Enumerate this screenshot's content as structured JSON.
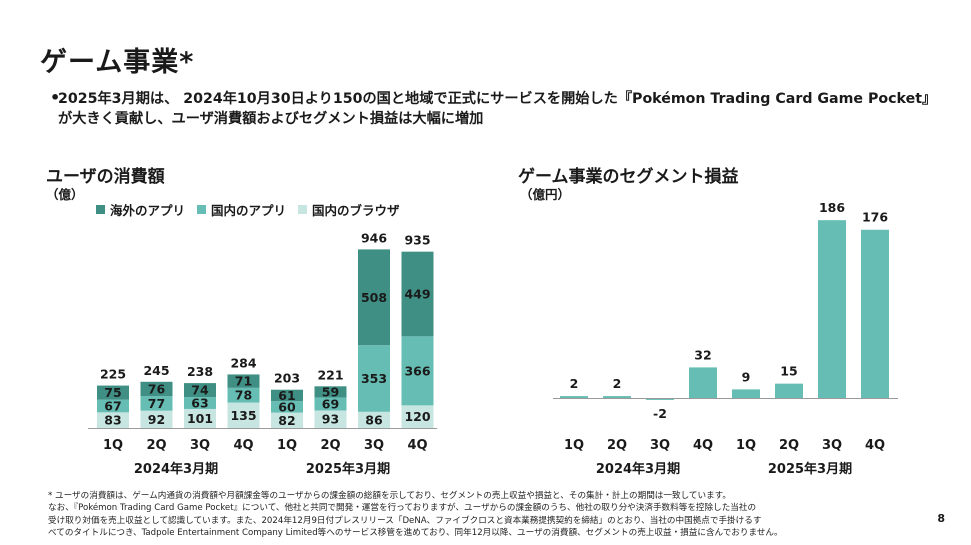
{
  "title": "ゲーム事業*",
  "bullet": "2025年3月期は、 2024年10月30日より150の国と地域で正式にサービスを開始した『Pokémon Trading Card Game Pocket』が大きく貢献し、ユーザ消費額およびセグメント損益は大幅に増加",
  "footnote": [
    "* ユーザの消費額は、ゲーム内通貨の消費額や月額課金等のユーザからの課金額の総額を示しており、セグメントの売上収益や損益と、その集計・計上の期間は一致しています。",
    "なお、『Pokémon Trading Card Game Pocket』について、他社と共同で開発・運営を行っておりますが、ユーザからの課金額のうち、他社の取り分や決済手数料等を控除した当社の",
    "受け取り対価を売上収益として認識しています。また、2024年12月9日付プレスリリース「DeNA、ファイブクロスと資本業務提携契約を締結」のとおり、当社の中国拠点で手掛けるす",
    "べてのタイトルにつき、Tadpole Entertainment Company Limited等へのサービス移管を進めており、同年12月以降、ユーザの消費額、セグメントの売上収益・損益に含んでおりません。"
  ],
  "page_number": "8",
  "chart_data": [
    {
      "type": "bar",
      "stacked": true,
      "title": "ユーザの消費額",
      "unit": "（億）",
      "categories": [
        "1Q",
        "2Q",
        "3Q",
        "4Q",
        "1Q",
        "2Q",
        "3Q",
        "4Q"
      ],
      "groups": [
        {
          "label": "2024年3月期"
        },
        {
          "label": "2025年3月期"
        }
      ],
      "series": [
        {
          "name": "国内のブラウザ",
          "color": "#c7e6e1",
          "values": [
            83,
            92,
            101,
            135,
            82,
            93,
            86,
            120
          ]
        },
        {
          "name": "国内のアプリ",
          "color": "#66bdb3",
          "values": [
            67,
            77,
            63,
            78,
            60,
            69,
            353,
            366
          ]
        },
        {
          "name": "海外のアプリ",
          "color": "#3f8f85",
          "values": [
            75,
            76,
            74,
            71,
            61,
            59,
            508,
            449
          ]
        }
      ],
      "legend_order": [
        "海外のアプリ",
        "国内のアプリ",
        "国内のブラウザ"
      ],
      "totals": [
        225,
        245,
        238,
        284,
        203,
        221,
        946,
        935
      ],
      "ylim": [
        0,
        1000
      ]
    },
    {
      "type": "bar",
      "title": "ゲーム事業のセグメント損益",
      "unit": "（億円）",
      "categories": [
        "1Q",
        "2Q",
        "3Q",
        "4Q",
        "1Q",
        "2Q",
        "3Q",
        "4Q"
      ],
      "groups": [
        {
          "label": "2024年3月期"
        },
        {
          "label": "2025年3月期"
        }
      ],
      "color": "#66bdb3",
      "values": [
        2,
        2,
        -2,
        32,
        9,
        15,
        186,
        176
      ],
      "labels": [
        "2",
        "2",
        "-2",
        "32",
        "9",
        "15",
        "186",
        "176"
      ],
      "ylim": [
        -10,
        200
      ]
    }
  ]
}
